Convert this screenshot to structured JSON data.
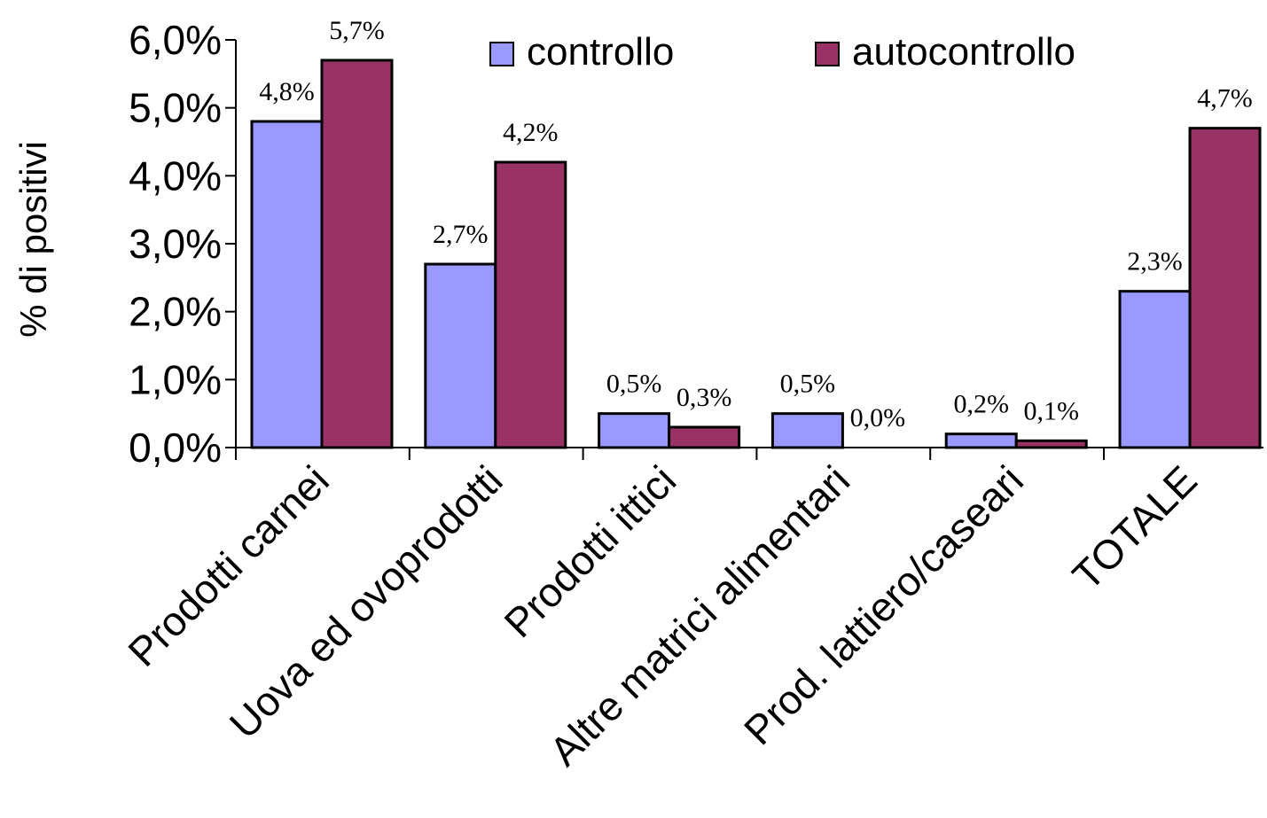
{
  "chart_data": {
    "type": "bar",
    "ylabel": "% di positivi",
    "xlabel": "",
    "ylim": [
      0,
      6
    ],
    "yticks": [
      "0,0%",
      "1,0%",
      "2,0%",
      "3,0%",
      "4,0%",
      "5,0%",
      "6,0%"
    ],
    "categories": [
      "Prodotti carnei",
      "Uova ed ovoprodotti",
      "Prodotti ittici",
      "Altre matrici alimentari",
      "Prod. lattiero/caseari",
      "TOTALE"
    ],
    "series": [
      {
        "name": "controllo",
        "color": "#9999ff",
        "values": [
          4.8,
          2.7,
          0.5,
          0.5,
          0.2,
          2.3
        ],
        "labels": [
          "4,8%",
          "2,7%",
          "0,5%",
          "0,5%",
          "0,2%",
          "2,3%"
        ]
      },
      {
        "name": "autocontrollo",
        "color": "#993366",
        "values": [
          5.7,
          4.2,
          0.3,
          0.0,
          0.1,
          4.7
        ],
        "labels": [
          "5,7%",
          "4,2%",
          "0,3%",
          "0,0%",
          "0,1%",
          "4,7%"
        ]
      }
    ],
    "legend_position": "top"
  }
}
